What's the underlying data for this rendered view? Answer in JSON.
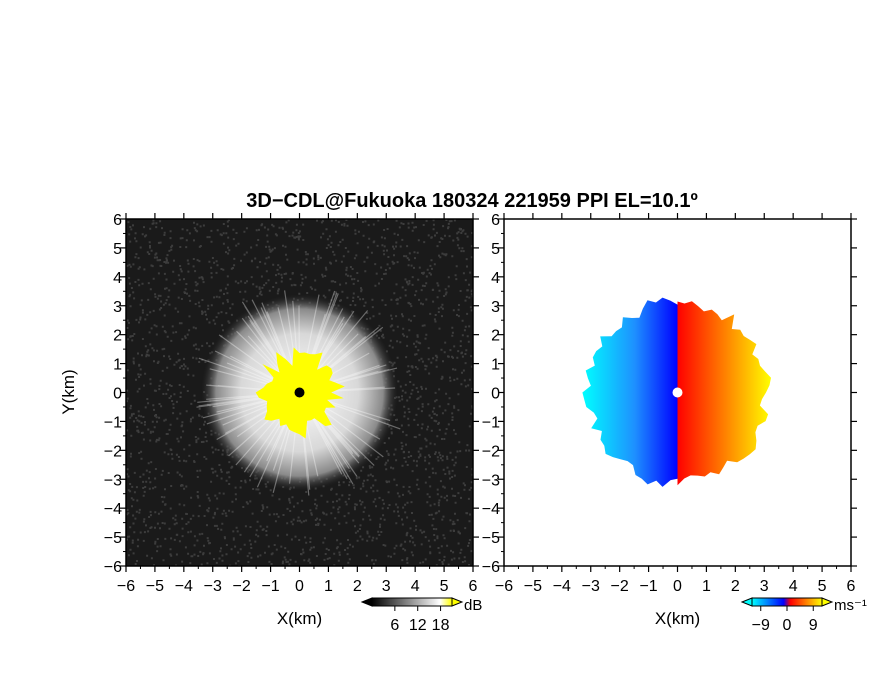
{
  "chart_data": [
    {
      "type": "heatmap",
      "panel": "reflectivity",
      "title": "3D−CDL@Fukuoka 180324 221959 PPI EL=10.1º",
      "xlabel": "X(km)",
      "ylabel": "Y(km)",
      "xlim": [
        -6,
        6
      ],
      "ylim": [
        -6,
        6
      ],
      "xticks": [
        "−6",
        "−5",
        "−4",
        "−3",
        "−2",
        "−1",
        "0",
        "1",
        "2",
        "3",
        "4",
        "5",
        "6"
      ],
      "yticks": [
        "6",
        "5",
        "4",
        "3",
        "2",
        "1",
        "0",
        "−1",
        "−2",
        "−3",
        "−4",
        "−5",
        "−6"
      ],
      "background_color": "#1a1a1a",
      "echo_radius_km": 3.4,
      "saturated_radius_km": 1.3,
      "saturated_color": "#ffff00",
      "colorbar": {
        "unit": "dB",
        "tick_labels": [
          "6",
          "12",
          "18"
        ],
        "ticks": [
          6,
          12,
          18
        ],
        "range": [
          0,
          21
        ],
        "colors": [
          "#000000",
          "#ffffff",
          "#ffff00"
        ]
      }
    },
    {
      "type": "heatmap",
      "panel": "doppler-velocity",
      "xlabel": "X(km)",
      "xlim": [
        -6,
        6
      ],
      "ylim": [
        -6,
        6
      ],
      "xticks": [
        "−6",
        "−5",
        "−4",
        "−3",
        "−2",
        "−1",
        "0",
        "1",
        "2",
        "3",
        "4",
        "5",
        "6"
      ],
      "yticks": [
        "6",
        "5",
        "4",
        "3",
        "2",
        "1",
        "0",
        "−1",
        "−2",
        "−3",
        "−4",
        "−5",
        "−6"
      ],
      "echo_radius_km": 3.2,
      "approaching_colors": [
        "#00ffff",
        "#0000ff"
      ],
      "receding_colors": [
        "#ff0000",
        "#ffff00"
      ],
      "colorbar": {
        "unit": "ms⁻¹",
        "tick_labels": [
          "−9",
          "0",
          "9"
        ],
        "ticks": [
          -9,
          0,
          9
        ],
        "range": [
          -12,
          12
        ],
        "colors": [
          "#00ffff",
          "#0000ff",
          "#ff0000",
          "#ffff00"
        ]
      }
    }
  ]
}
